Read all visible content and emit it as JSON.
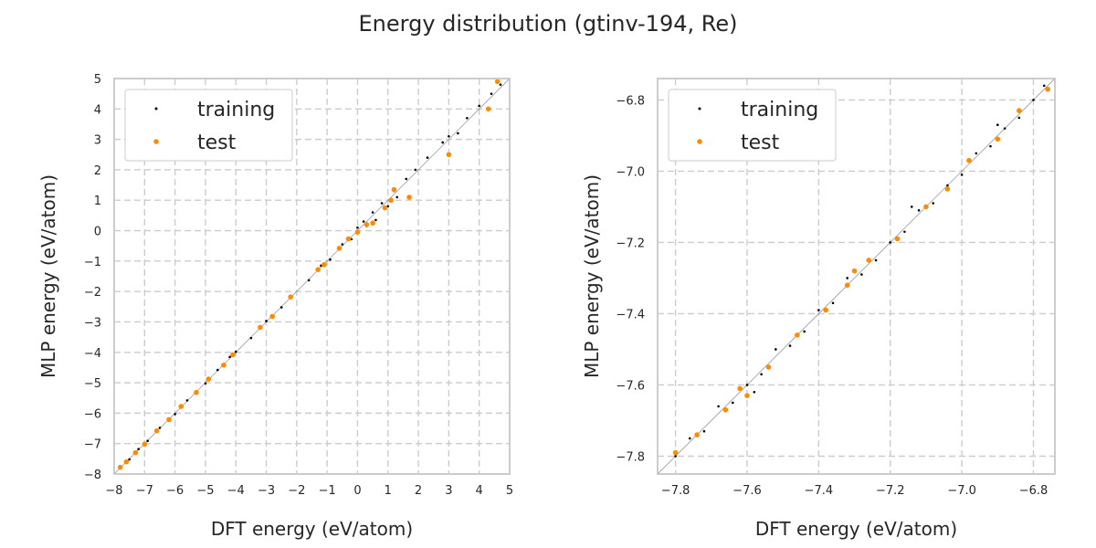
{
  "figure": {
    "title": "Energy distribution (gtinv-194, Re)"
  },
  "colors": {
    "training": "#000000",
    "test": "#ff8c00",
    "grid": "#cccccc",
    "frame": "#cccccc"
  },
  "chart_data": [
    {
      "type": "scatter",
      "xlabel": "DFT energy (eV/atom)",
      "ylabel": "MLP energy (eV/atom)",
      "xlim": [
        -8,
        5
      ],
      "ylim": [
        -8,
        5
      ],
      "xticks": [
        -8,
        -7,
        -6,
        -5,
        -4,
        -3,
        -2,
        -1,
        0,
        1,
        2,
        3,
        4,
        5
      ],
      "yticks": [
        -8,
        -7,
        -6,
        -5,
        -4,
        -3,
        -2,
        -1,
        0,
        1,
        2,
        3,
        4,
        5
      ],
      "xtick_labels": [
        "−8",
        "−7",
        "−6",
        "−5",
        "−4",
        "−3",
        "−2",
        "−1",
        "0",
        "1",
        "2",
        "3",
        "4",
        "5"
      ],
      "ytick_labels": [
        "−8",
        "−7",
        "−6",
        "−5",
        "−4",
        "−3",
        "−2",
        "−1",
        "0",
        "1",
        "2",
        "3",
        "4",
        "5"
      ],
      "grid": true,
      "legend": "top-left",
      "series": [
        {
          "name": "training",
          "points": [
            [
              -7.8,
              -7.8
            ],
            [
              -7.5,
              -7.52
            ],
            [
              -7.2,
              -7.18
            ],
            [
              -6.9,
              -6.91
            ],
            [
              -6.5,
              -6.48
            ],
            [
              -6.0,
              -6.03
            ],
            [
              -5.6,
              -5.58
            ],
            [
              -5.0,
              -5.02
            ],
            [
              -4.6,
              -4.58
            ],
            [
              -4.0,
              -3.98
            ],
            [
              -3.5,
              -3.53
            ],
            [
              -3.0,
              -2.97
            ],
            [
              -2.5,
              -2.52
            ],
            [
              -2.2,
              -2.17
            ],
            [
              -1.6,
              -1.63
            ],
            [
              -1.2,
              -1.15
            ],
            [
              -0.9,
              -0.95
            ],
            [
              -0.5,
              -0.45
            ],
            [
              -0.2,
              -0.28
            ],
            [
              0.0,
              0.1
            ],
            [
              0.2,
              0.3
            ],
            [
              0.3,
              0.15
            ],
            [
              0.5,
              0.6
            ],
            [
              0.6,
              0.35
            ],
            [
              0.8,
              0.9
            ],
            [
              1.0,
              0.8
            ],
            [
              1.2,
              1.3
            ],
            [
              1.3,
              1.1
            ],
            [
              1.6,
              1.7
            ],
            [
              1.9,
              2.0
            ],
            [
              2.3,
              2.4
            ],
            [
              2.8,
              2.9
            ],
            [
              3.0,
              3.1
            ],
            [
              3.3,
              3.2
            ],
            [
              3.6,
              3.7
            ],
            [
              4.0,
              4.1
            ],
            [
              4.4,
              4.5
            ],
            [
              4.7,
              4.8
            ],
            [
              -6.2,
              -6.25
            ],
            [
              -4.2,
              -4.15
            ]
          ]
        },
        {
          "name": "test",
          "points": [
            [
              -7.8,
              -7.78
            ],
            [
              -7.6,
              -7.6
            ],
            [
              -7.3,
              -7.3
            ],
            [
              -7.0,
              -7.02
            ],
            [
              -6.6,
              -6.58
            ],
            [
              -6.2,
              -6.21
            ],
            [
              -5.8,
              -5.78
            ],
            [
              -5.3,
              -5.32
            ],
            [
              -4.9,
              -4.88
            ],
            [
              -4.4,
              -4.42
            ],
            [
              -4.1,
              -4.08
            ],
            [
              -3.2,
              -3.18
            ],
            [
              -2.8,
              -2.82
            ],
            [
              -2.2,
              -2.18
            ],
            [
              -1.3,
              -1.28
            ],
            [
              -1.1,
              -1.12
            ],
            [
              -0.6,
              -0.58
            ],
            [
              -0.3,
              -0.27
            ],
            [
              0.0,
              -0.05
            ],
            [
              0.3,
              0.2
            ],
            [
              0.5,
              0.25
            ],
            [
              0.9,
              0.75
            ],
            [
              1.1,
              1.0
            ],
            [
              1.2,
              1.35
            ],
            [
              1.7,
              1.1
            ],
            [
              3.0,
              2.5
            ],
            [
              4.3,
              4.0
            ],
            [
              4.6,
              4.9
            ]
          ]
        }
      ]
    },
    {
      "type": "scatter",
      "xlabel": "DFT energy (eV/atom)",
      "ylabel": "MLP energy (eV/atom)",
      "xlim": [
        -7.85,
        -6.74
      ],
      "ylim": [
        -7.85,
        -6.74
      ],
      "xticks": [
        -7.8,
        -7.6,
        -7.4,
        -7.2,
        -7.0,
        -6.8
      ],
      "yticks": [
        -7.8,
        -7.6,
        -7.4,
        -7.2,
        -7.0,
        -6.8
      ],
      "xtick_labels": [
        "−7.8",
        "−7.6",
        "−7.4",
        "−7.2",
        "−7.0",
        "−6.8"
      ],
      "ytick_labels": [
        "−7.8",
        "−7.6",
        "−7.4",
        "−7.2",
        "−7.0",
        "−6.8"
      ],
      "grid": true,
      "legend": "top-left",
      "series": [
        {
          "name": "training",
          "points": [
            [
              -7.8,
              -7.8
            ],
            [
              -7.76,
              -7.75
            ],
            [
              -7.72,
              -7.73
            ],
            [
              -7.68,
              -7.66
            ],
            [
              -7.64,
              -7.65
            ],
            [
              -7.6,
              -7.6
            ],
            [
              -7.56,
              -7.57
            ],
            [
              -7.52,
              -7.5
            ],
            [
              -7.48,
              -7.49
            ],
            [
              -7.44,
              -7.45
            ],
            [
              -7.4,
              -7.39
            ],
            [
              -7.36,
              -7.37
            ],
            [
              -7.32,
              -7.3
            ],
            [
              -7.28,
              -7.29
            ],
            [
              -7.24,
              -7.25
            ],
            [
              -7.2,
              -7.2
            ],
            [
              -7.16,
              -7.17
            ],
            [
              -7.12,
              -7.11
            ],
            [
              -7.08,
              -7.09
            ],
            [
              -7.04,
              -7.04
            ],
            [
              -7.0,
              -7.01
            ],
            [
              -6.96,
              -6.95
            ],
            [
              -6.92,
              -6.93
            ],
            [
              -6.88,
              -6.88
            ],
            [
              -6.84,
              -6.85
            ],
            [
              -6.8,
              -6.8
            ],
            [
              -6.77,
              -6.76
            ],
            [
              -7.58,
              -7.62
            ],
            [
              -7.14,
              -7.1
            ],
            [
              -6.9,
              -6.87
            ]
          ]
        },
        {
          "name": "test",
          "points": [
            [
              -7.8,
              -7.79
            ],
            [
              -7.74,
              -7.74
            ],
            [
              -7.66,
              -7.67
            ],
            [
              -7.62,
              -7.61
            ],
            [
              -7.54,
              -7.55
            ],
            [
              -7.46,
              -7.46
            ],
            [
              -7.38,
              -7.39
            ],
            [
              -7.32,
              -7.32
            ],
            [
              -7.26,
              -7.25
            ],
            [
              -7.18,
              -7.19
            ],
            [
              -7.1,
              -7.1
            ],
            [
              -7.04,
              -7.05
            ],
            [
              -6.98,
              -6.97
            ],
            [
              -6.9,
              -6.91
            ],
            [
              -6.84,
              -6.83
            ],
            [
              -6.76,
              -6.77
            ],
            [
              -7.6,
              -7.63
            ],
            [
              -7.3,
              -7.28
            ]
          ]
        }
      ]
    }
  ]
}
